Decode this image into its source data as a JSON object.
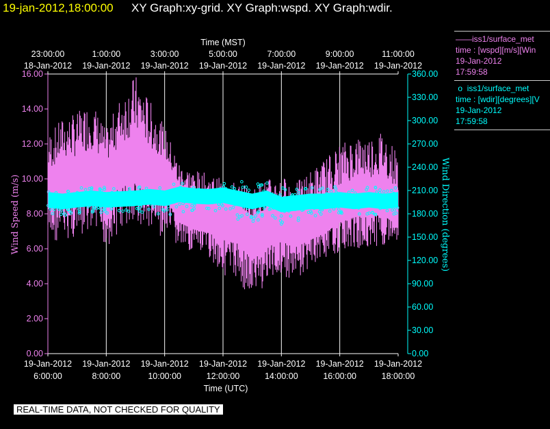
{
  "header": {
    "datetime": "19-jan-2012,18:00:00",
    "title": "XY Graph:xy-grid.  XY Graph:wspd.  XY Graph:wdir."
  },
  "legend": {
    "wspd": {
      "series": "iss1/surface_met",
      "variable": "time : [wspd][m/s][Win",
      "date": "19-Jan-2012",
      "time": "17:59:58"
    },
    "wdir": {
      "series": "iss1/surface_met",
      "variable": "time : [wdir][degrees][V",
      "date": "19-Jan-2012",
      "time": "17:59:58"
    }
  },
  "quality_note": "REAL-TIME DATA, NOT CHECKED FOR QUALITY",
  "colors": {
    "wspd": "#ee82ee",
    "wdir": "#00ffff",
    "background": "#000000",
    "grid": "#ffffff",
    "header_time": "#ffff00"
  },
  "chart_data": {
    "type": "line",
    "top_axis_label": "Time (MST)",
    "bottom_axis_label": "Time (UTC)",
    "top_ticks": [
      {
        "time": "23:00:00",
        "date": "18-Jan-2012"
      },
      {
        "time": "1:00:00",
        "date": "19-Jan-2012"
      },
      {
        "time": "3:00:00",
        "date": "19-Jan-2012"
      },
      {
        "time": "5:00:00",
        "date": "19-Jan-2012"
      },
      {
        "time": "7:00:00",
        "date": "19-Jan-2012"
      },
      {
        "time": "9:00:00",
        "date": "19-Jan-2012"
      },
      {
        "time": "11:00:00",
        "date": "19-Jan-2012"
      }
    ],
    "bottom_ticks": [
      {
        "date": "19-Jan-2012",
        "time": "6:00:00"
      },
      {
        "date": "19-Jan-2012",
        "time": "8:00:00"
      },
      {
        "date": "19-Jan-2012",
        "time": "10:00:00"
      },
      {
        "date": "19-Jan-2012",
        "time": "12:00:00"
      },
      {
        "date": "19-Jan-2012",
        "time": "14:00:00"
      },
      {
        "date": "19-Jan-2012",
        "time": "16:00:00"
      },
      {
        "date": "19-Jan-2012",
        "time": "18:00:00"
      }
    ],
    "x_range_utc_hours": [
      6,
      18
    ],
    "left_axis": {
      "label": "Wind Speed (m/s)",
      "ylim": [
        0,
        16
      ],
      "ticks": [
        "0.00",
        "2.00",
        "4.00",
        "6.00",
        "8.00",
        "10.00",
        "12.00",
        "14.00",
        "16.00"
      ]
    },
    "right_axis": {
      "label": "Wind Direction (degrees)",
      "ylim": [
        0,
        360
      ],
      "ticks": [
        "0.00",
        "30.00",
        "60.00",
        "90.00",
        "120.00",
        "150.00",
        "180.00",
        "210.00",
        "240.00",
        "270.00",
        "300.00",
        "330.00",
        "360.00"
      ]
    },
    "grid": "vertical",
    "series": [
      {
        "name": "iss1/surface_met wspd",
        "axis": "left",
        "x_utc_hours": [
          6,
          6.5,
          7,
          7.5,
          8,
          8.5,
          9,
          9.5,
          10,
          10.5,
          11,
          11.5,
          12,
          12.5,
          13,
          13.5,
          14,
          14.5,
          15,
          15.5,
          16,
          16.5,
          17,
          17.5,
          18
        ],
        "mean": [
          9.5,
          10,
          10.2,
          10.5,
          10,
          10.8,
          11,
          10.5,
          10.2,
          8.6,
          8.2,
          8.0,
          7.6,
          7.4,
          6.8,
          7.2,
          7.5,
          7.2,
          7.6,
          8.0,
          8.6,
          8.9,
          9.0,
          9.0,
          8.4
        ],
        "min": [
          6.2,
          6.5,
          6.5,
          6.8,
          6.0,
          7.0,
          7.5,
          7.0,
          6.5,
          6.0,
          5.8,
          5.5,
          4.5,
          4.2,
          3.0,
          4.0,
          4.5,
          4.0,
          5.0,
          5.5,
          5.8,
          6.0,
          6.0,
          6.2,
          6.5
        ],
        "max": [
          12.5,
          13.5,
          13.8,
          14.5,
          12.8,
          14.8,
          16.0,
          14.5,
          13.0,
          11.0,
          10.5,
          10.3,
          10.0,
          9.8,
          9.5,
          10.0,
          10.2,
          9.8,
          10.5,
          11.2,
          12.0,
          12.5,
          12.5,
          12.8,
          11.5
        ]
      },
      {
        "name": "iss1/surface_met wdir",
        "axis": "right",
        "x_utc_hours": [
          6,
          6.5,
          7,
          7.5,
          8,
          8.5,
          9,
          9.5,
          10,
          10.5,
          11,
          11.5,
          12,
          12.5,
          13,
          13.5,
          14,
          14.5,
          15,
          15.5,
          16,
          16.5,
          17,
          17.5,
          18
        ],
        "mean": [
          198,
          196,
          198,
          200,
          198,
          199,
          200,
          202,
          200,
          205,
          203,
          202,
          204,
          200,
          196,
          200,
          192,
          194,
          196,
          196,
          198,
          196,
          198,
          196,
          198
        ],
        "min": [
          180,
          178,
          180,
          182,
          180,
          182,
          184,
          180,
          176,
          182,
          182,
          180,
          182,
          172,
          168,
          178,
          165,
          170,
          176,
          178,
          180,
          178,
          180,
          178,
          180
        ],
        "max": [
          214,
          212,
          214,
          216,
          214,
          215,
          216,
          218,
          216,
          222,
          220,
          218,
          220,
          226,
          222,
          220,
          214,
          212,
          214,
          214,
          216,
          214,
          216,
          214,
          216
        ]
      }
    ]
  }
}
